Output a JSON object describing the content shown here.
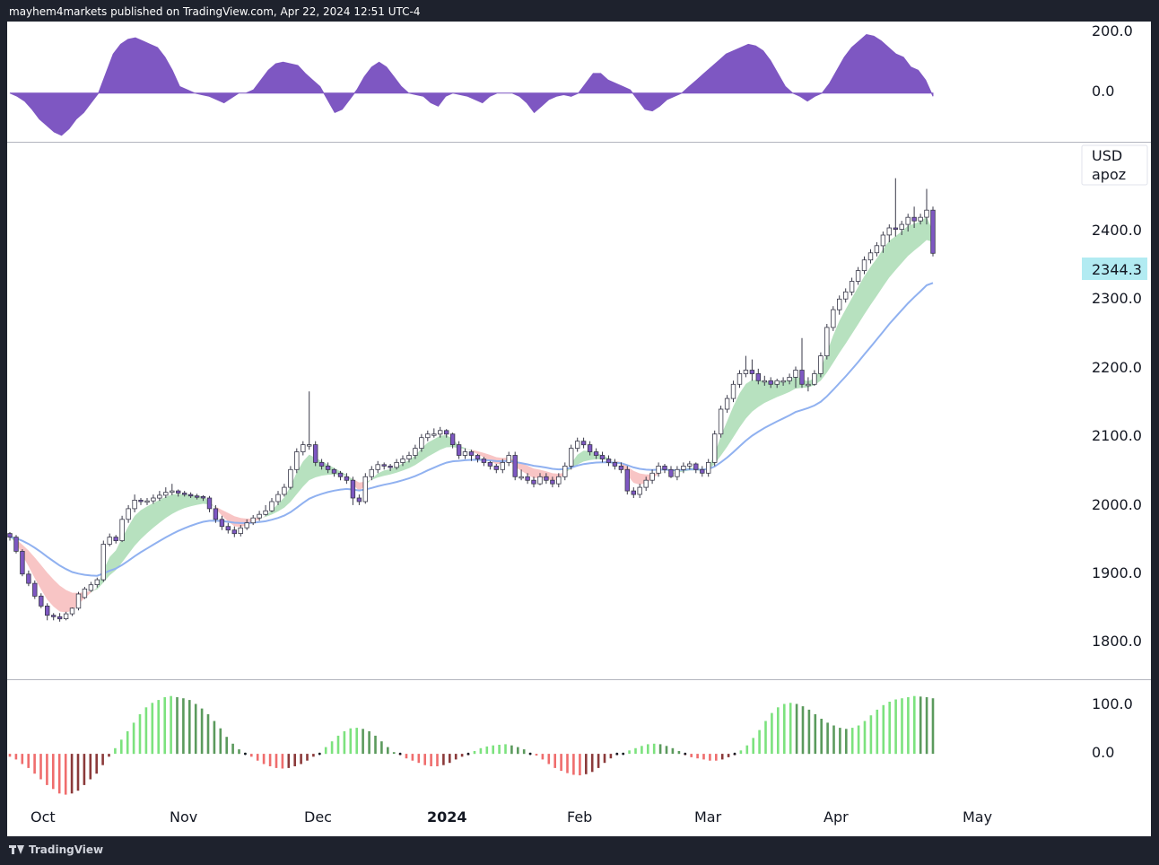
{
  "header": {
    "attribution": "mayhem4markets published on TradingView.com, Apr 22, 2024 12:51 UTC-4"
  },
  "footer": {
    "brand": "TradingView"
  },
  "colors": {
    "bull": "#ffffff",
    "bear": "#7e57c2",
    "osc": "#7e57c2",
    "cloud_bull": "#b7e1bf",
    "cloud_bear": "#f8c5c5",
    "ma": "#90b1f0",
    "hist_pos_light": "#7ce27e",
    "hist_pos_dark": "#5b9a5d",
    "hist_neg_light": "#ef6d6d",
    "hist_neg_dark": "#8b3a3a",
    "price_badge": "#b2ebf2"
  },
  "chart_data": [
    {
      "type": "area",
      "pane": "oscillator-top",
      "y_ticks": [
        "200.0",
        "0.0"
      ],
      "ylim": [
        -150,
        220
      ],
      "values": [
        0,
        -10,
        -25,
        -50,
        -80,
        -100,
        -120,
        -130,
        -110,
        -80,
        -60,
        -30,
        0,
        60,
        120,
        150,
        165,
        170,
        160,
        150,
        140,
        110,
        70,
        20,
        10,
        0,
        -5,
        -10,
        -20,
        -30,
        -15,
        0,
        0,
        10,
        40,
        70,
        90,
        95,
        90,
        85,
        60,
        40,
        20,
        -20,
        -60,
        -50,
        -20,
        10,
        50,
        80,
        95,
        80,
        50,
        20,
        0,
        -5,
        -10,
        -30,
        -40,
        -10,
        0,
        -5,
        -10,
        -20,
        -30,
        -10,
        0,
        0,
        0,
        -10,
        -30,
        -60,
        -40,
        -20,
        -10,
        -5,
        -10,
        0,
        30,
        60,
        60,
        40,
        30,
        20,
        10,
        -20,
        -50,
        -55,
        -40,
        -20,
        -10,
        0,
        20,
        40,
        60,
        80,
        100,
        120,
        130,
        140,
        150,
        145,
        130,
        100,
        60,
        20,
        0,
        -10,
        -25,
        -10,
        0,
        30,
        70,
        110,
        140,
        160,
        180,
        175,
        160,
        140,
        120,
        110,
        80,
        70,
        40,
        -10
      ]
    },
    {
      "type": "candlestick",
      "pane": "main",
      "currency": "USD",
      "symbol": "apoz",
      "last_price": "2344.3",
      "y_ticks": [
        "2400.0",
        "2300.0",
        "2200.0",
        "2100.0",
        "2000.0",
        "1900.0",
        "1800.0"
      ],
      "ylim": [
        1745,
        2500
      ],
      "x_ticks": [
        "Oct",
        "Nov",
        "Dec",
        "2024",
        "Feb",
        "Mar",
        "Apr",
        "May"
      ],
      "close": [
        1945,
        1925,
        1893,
        1880,
        1862,
        1848,
        1835,
        1833,
        1830,
        1837,
        1845,
        1865,
        1872,
        1878,
        1885,
        1935,
        1945,
        1940,
        1970,
        1985,
        1997,
        1995,
        1996,
        2000,
        2004,
        2008,
        2010,
        2007,
        2005,
        2003,
        2002,
        2000,
        1985,
        1970,
        1960,
        1955,
        1950,
        1958,
        1965,
        1972,
        1977,
        1982,
        1995,
        2005,
        2015,
        2040,
        2065,
        2075,
        2075,
        2050,
        2045,
        2040,
        2035,
        2030,
        2025,
        2000,
        1995,
        2030,
        2040,
        2047,
        2045,
        2043,
        2050,
        2055,
        2060,
        2070,
        2085,
        2090,
        2090,
        2095,
        2090,
        2075,
        2060,
        2065,
        2060,
        2055,
        2050,
        2045,
        2040,
        2050,
        2060,
        2030,
        2030,
        2025,
        2020,
        2030,
        2025,
        2020,
        2030,
        2045,
        2070,
        2080,
        2075,
        2065,
        2060,
        2055,
        2050,
        2045,
        2040,
        2010,
        2005,
        2015,
        2025,
        2035,
        2045,
        2040,
        2030,
        2040,
        2045,
        2048,
        2040,
        2035,
        2050,
        2090,
        2125,
        2140,
        2160,
        2175,
        2180,
        2175,
        2165,
        2165,
        2160,
        2165,
        2165,
        2170,
        2180,
        2160,
        2160,
        2175,
        2200,
        2240,
        2265,
        2280,
        2290,
        2305,
        2320,
        2335,
        2345,
        2355,
        2370,
        2380,
        2378,
        2385,
        2395,
        2390,
        2395,
        2405,
        2344.3
      ],
      "open": [
        1950,
        1945,
        1925,
        1893,
        1880,
        1862,
        1848,
        1835,
        1833,
        1830,
        1837,
        1845,
        1860,
        1870,
        1878,
        1885,
        1935,
        1945,
        1940,
        1970,
        1985,
        1997,
        1995,
        1996,
        2000,
        2004,
        2008,
        2010,
        2007,
        2005,
        2003,
        2002,
        2000,
        1985,
        1970,
        1960,
        1955,
        1950,
        1958,
        1965,
        1972,
        1977,
        1982,
        1995,
        2005,
        2015,
        2040,
        2065,
        2075,
        2075,
        2050,
        2045,
        2040,
        2035,
        2030,
        2025,
        2000,
        1995,
        2030,
        2040,
        2047,
        2045,
        2043,
        2050,
        2055,
        2060,
        2070,
        2085,
        2090,
        2090,
        2095,
        2090,
        2075,
        2060,
        2065,
        2060,
        2055,
        2050,
        2045,
        2040,
        2050,
        2060,
        2030,
        2030,
        2025,
        2020,
        2030,
        2025,
        2020,
        2030,
        2045,
        2070,
        2080,
        2075,
        2065,
        2060,
        2055,
        2050,
        2045,
        2040,
        2010,
        2005,
        2015,
        2025,
        2035,
        2045,
        2040,
        2030,
        2040,
        2045,
        2048,
        2040,
        2035,
        2050,
        2090,
        2125,
        2140,
        2160,
        2175,
        2180,
        2175,
        2165,
        2165,
        2160,
        2165,
        2165,
        2170,
        2180,
        2160,
        2160,
        2175,
        2200,
        2240,
        2265,
        2280,
        2290,
        2305,
        2320,
        2335,
        2345,
        2355,
        2370,
        2380,
        2378,
        2385,
        2395,
        2390,
        2395,
        2405
      ],
      "high": [
        1952,
        1948,
        1928,
        1898,
        1884,
        1866,
        1852,
        1838,
        1838,
        1840,
        1846,
        1868,
        1875,
        1882,
        1888,
        1940,
        1950,
        1948,
        1975,
        1990,
        2005,
        2000,
        2000,
        2005,
        2010,
        2015,
        2020,
        2012,
        2010,
        2008,
        2006,
        2004,
        2003,
        1990,
        1975,
        1965,
        1960,
        1962,
        1970,
        1976,
        1982,
        1990,
        2000,
        2010,
        2020,
        2045,
        2070,
        2080,
        2150,
        2080,
        2055,
        2050,
        2042,
        2038,
        2035,
        2030,
        2005,
        2035,
        2045,
        2052,
        2050,
        2048,
        2055,
        2060,
        2065,
        2075,
        2090,
        2095,
        2098,
        2100,
        2097,
        2092,
        2080,
        2070,
        2068,
        2062,
        2058,
        2052,
        2048,
        2055,
        2065,
        2065,
        2040,
        2035,
        2030,
        2035,
        2035,
        2030,
        2035,
        2050,
        2075,
        2085,
        2085,
        2080,
        2070,
        2065,
        2060,
        2055,
        2050,
        2045,
        2015,
        2020,
        2030,
        2040,
        2050,
        2048,
        2045,
        2045,
        2050,
        2052,
        2050,
        2045,
        2055,
        2095,
        2130,
        2145,
        2165,
        2180,
        2200,
        2195,
        2182,
        2172,
        2170,
        2168,
        2170,
        2175,
        2185,
        2225,
        2170,
        2180,
        2205,
        2245,
        2270,
        2285,
        2295,
        2310,
        2325,
        2340,
        2350,
        2360,
        2375,
        2385,
        2450,
        2390,
        2400,
        2410,
        2400,
        2435,
        2410
      ],
      "low": [
        1940,
        1922,
        1890,
        1876,
        1858,
        1845,
        1828,
        1828,
        1826,
        1828,
        1834,
        1842,
        1858,
        1868,
        1874,
        1882,
        1932,
        1936,
        1938,
        1965,
        1980,
        1990,
        1990,
        1992,
        1996,
        2000,
        2004,
        2002,
        2002,
        2000,
        1998,
        1996,
        1980,
        1965,
        1955,
        1950,
        1945,
        1946,
        1955,
        1962,
        1968,
        1975,
        1980,
        1990,
        2002,
        2012,
        2035,
        2060,
        2068,
        2045,
        2040,
        2035,
        2030,
        2025,
        2020,
        1990,
        1990,
        1992,
        2025,
        2035,
        2040,
        2038,
        2040,
        2045,
        2050,
        2055,
        2065,
        2080,
        2085,
        2085,
        2085,
        2070,
        2055,
        2055,
        2052,
        2050,
        2045,
        2040,
        2035,
        2035,
        2045,
        2025,
        2025,
        2020,
        2015,
        2018,
        2020,
        2015,
        2015,
        2025,
        2040,
        2065,
        2070,
        2060,
        2055,
        2050,
        2045,
        2040,
        2035,
        2005,
        2000,
        2000,
        2010,
        2020,
        2030,
        2035,
        2028,
        2025,
        2035,
        2040,
        2035,
        2030,
        2030,
        2045,
        2085,
        2120,
        2135,
        2155,
        2170,
        2165,
        2160,
        2158,
        2155,
        2155,
        2158,
        2160,
        2155,
        2155,
        2150,
        2158,
        2170,
        2195,
        2235,
        2258,
        2275,
        2285,
        2300,
        2315,
        2330,
        2340,
        2345,
        2360,
        2368,
        2370,
        2375,
        2380,
        2385,
        2385,
        2340
      ]
    },
    {
      "type": "bar",
      "pane": "histogram-bottom",
      "y_ticks": [
        "100.0",
        "0.0"
      ],
      "ylim": [
        -90,
        130
      ],
      "values": [
        -5,
        -10,
        -18,
        -25,
        -35,
        -45,
        -55,
        -62,
        -70,
        -72,
        -70,
        -65,
        -55,
        -45,
        -35,
        -20,
        -5,
        10,
        25,
        40,
        55,
        70,
        82,
        90,
        95,
        100,
        102,
        100,
        98,
        95,
        88,
        80,
        70,
        58,
        45,
        30,
        18,
        8,
        2,
        -5,
        -12,
        -18,
        -22,
        -25,
        -26,
        -25,
        -22,
        -18,
        -12,
        -5,
        2,
        12,
        22,
        32,
        40,
        45,
        46,
        44,
        40,
        32,
        22,
        12,
        3,
        -2,
        -8,
        -12,
        -16,
        -20,
        -22,
        -22,
        -20,
        -16,
        -10,
        -5,
        -2,
        5,
        10,
        13,
        15,
        16,
        17,
        15,
        12,
        8,
        2,
        -3,
        -10,
        -18,
        -25,
        -30,
        -34,
        -37,
        -38,
        -36,
        -32,
        -25,
        -16,
        -8,
        -2,
        2,
        6,
        10,
        14,
        17,
        18,
        17,
        14,
        10,
        5,
        -2,
        -6,
        -8,
        -10,
        -12,
        -12,
        -10,
        -6,
        -2,
        6,
        15,
        28,
        42,
        58,
        72,
        82,
        88,
        90,
        88,
        84,
        78,
        70,
        62,
        55,
        50,
        46,
        44,
        46,
        50,
        58,
        68,
        78,
        86,
        92,
        96,
        98,
        100,
        102,
        101,
        100,
        98
      ]
    }
  ]
}
